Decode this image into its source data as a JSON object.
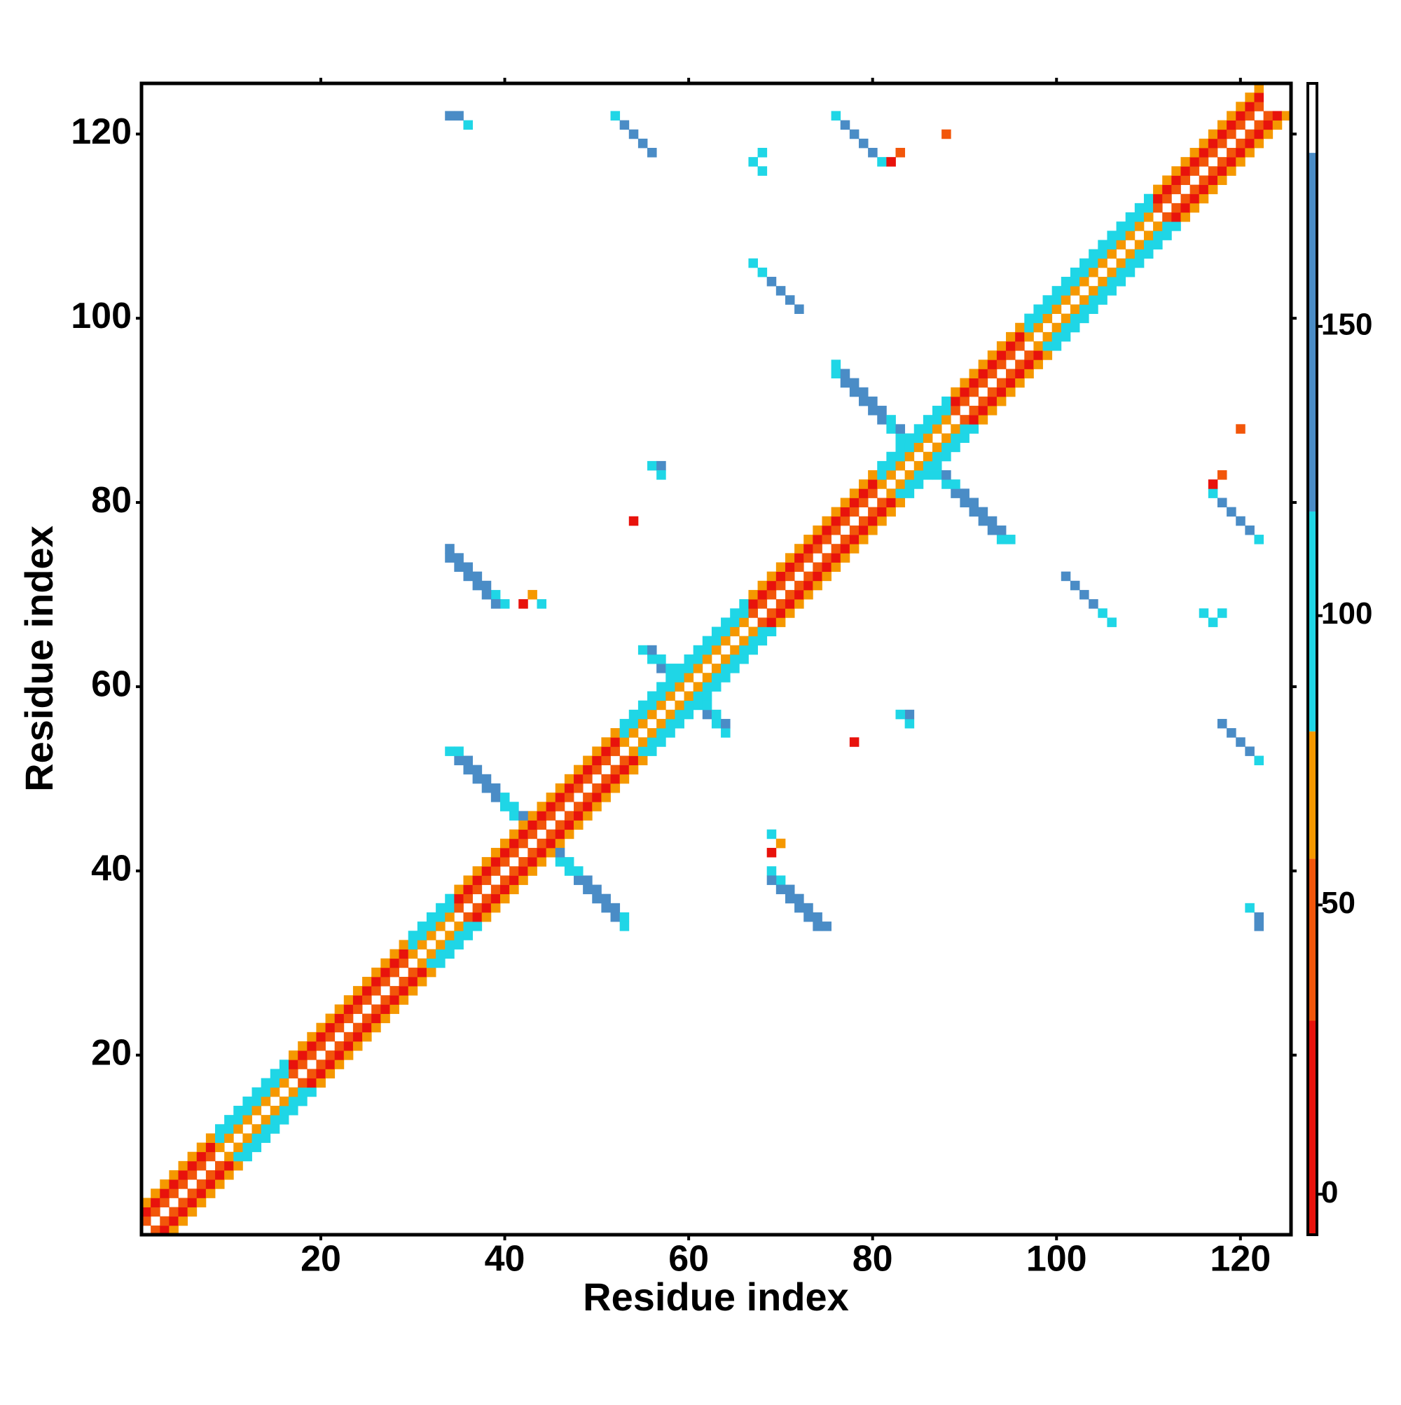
{
  "chart_data": {
    "type": "heatmap",
    "xlabel": "Residue index",
    "ylabel": "Residue index",
    "xlim": [
      0.5,
      125.5
    ],
    "ylim": [
      0.5,
      125.5
    ],
    "xticks": [
      20,
      40,
      60,
      80,
      100,
      120
    ],
    "yticks": [
      20,
      40,
      60,
      80,
      100,
      120
    ],
    "symmetric": true,
    "colorbar": {
      "lim": [
        -7,
        192
      ],
      "ticks": [
        0,
        50,
        100,
        150
      ],
      "bands": [
        {
          "from": -7,
          "to": 30,
          "color": "#e8120c"
        },
        {
          "from": 30,
          "to": 58,
          "color": "#f2560a"
        },
        {
          "from": 58,
          "to": 80,
          "color": "#f59800"
        },
        {
          "from": 80,
          "to": 118,
          "color": "#1fd6e6"
        },
        {
          "from": 118,
          "to": 180,
          "color": "#4a8cc6"
        },
        {
          "from": 180,
          "to": 192,
          "color": "#ffffff"
        }
      ]
    },
    "x": [
      1,
      1,
      1,
      2,
      2,
      2,
      3,
      3,
      3,
      4,
      4,
      4,
      5,
      5,
      5,
      6,
      6,
      6,
      7,
      7,
      7,
      8,
      8,
      8,
      9,
      9,
      9,
      10,
      10,
      10,
      11,
      11,
      11,
      12,
      12,
      12,
      13,
      13,
      13,
      14,
      14,
      14,
      15,
      15,
      15,
      16,
      16,
      16,
      17,
      17,
      17,
      18,
      18,
      18,
      19,
      19,
      19,
      20,
      20,
      20,
      21,
      21,
      21,
      22,
      22,
      22,
      23,
      23,
      23,
      24,
      24,
      24,
      25,
      25,
      25,
      26,
      26,
      26,
      27,
      27,
      27,
      28,
      28,
      28,
      29,
      29,
      29,
      30,
      30,
      30,
      31,
      31,
      31,
      32,
      32,
      32,
      33,
      33,
      33,
      34,
      34,
      34,
      35,
      35,
      35,
      36,
      36,
      36,
      37,
      37,
      37,
      38,
      38,
      38,
      39,
      39,
      39,
      40,
      40,
      40,
      41,
      41,
      41,
      42,
      42,
      42,
      43,
      43,
      43,
      44,
      44,
      44,
      45,
      45,
      45,
      46,
      46,
      46,
      47,
      47,
      47,
      48,
      48,
      48,
      49,
      49,
      49,
      50,
      50,
      50,
      51,
      51,
      51,
      52,
      52,
      52,
      53,
      53,
      53,
      54,
      54,
      54,
      55,
      55,
      55,
      56,
      56,
      56,
      57,
      57,
      57,
      58,
      58,
      58,
      59,
      59,
      59,
      60,
      60,
      60,
      61,
      61,
      61,
      62,
      62,
      62,
      63,
      63,
      63,
      64,
      64,
      64,
      65,
      65,
      65,
      66,
      66,
      66,
      67,
      67,
      67,
      68,
      68,
      68,
      69,
      69,
      69,
      70,
      70,
      70,
      71,
      71,
      71,
      72,
      72,
      72,
      73,
      73,
      73,
      74,
      74,
      74,
      75,
      75,
      75,
      76,
      76,
      76,
      77,
      77,
      77,
      78,
      78,
      78,
      79,
      79,
      79,
      80,
      80,
      80,
      81,
      81,
      81,
      82,
      82,
      82,
      83,
      83,
      83,
      84,
      84,
      84,
      85,
      85,
      85,
      86,
      86,
      86,
      87,
      87,
      87,
      88,
      88,
      88,
      89,
      89,
      89,
      90,
      90,
      90,
      91,
      91,
      91,
      92,
      92,
      92,
      93,
      93,
      93,
      94,
      94,
      94,
      95,
      95,
      95,
      96,
      96,
      96,
      97,
      97,
      97,
      98,
      98,
      98,
      99,
      99,
      99,
      100,
      100,
      100,
      101,
      101,
      101,
      102,
      102,
      102,
      103,
      103,
      103,
      104,
      104,
      104,
      105,
      105,
      105,
      106,
      106,
      106,
      107,
      107,
      107,
      108,
      108,
      108,
      109,
      109,
      109,
      110,
      110,
      110,
      111,
      111,
      111,
      112,
      112,
      112,
      113,
      113,
      113,
      114,
      114,
      114,
      115,
      115,
      115,
      116,
      116,
      116,
      117,
      117,
      117,
      118,
      118,
      118,
      119,
      119,
      119,
      120,
      120,
      120,
      121,
      121,
      121,
      122,
      122,
      122,
      34,
      35,
      36,
      37,
      38,
      39,
      40,
      41,
      35,
      36,
      37,
      38,
      39,
      40,
      41,
      42,
      76,
      77,
      78,
      79,
      80,
      81,
      82,
      83,
      76,
      77,
      78,
      79,
      80,
      81,
      82,
      83,
      55,
      56,
      57,
      56,
      57,
      58,
      34,
      35,
      36,
      37,
      38,
      39,
      40,
      34,
      35,
      36,
      37,
      38,
      39,
      42,
      43,
      44,
      67,
      68,
      69,
      70,
      71,
      72,
      76,
      77,
      78,
      79,
      80,
      81,
      82,
      83,
      52,
      53,
      54,
      55,
      56,
      34,
      35,
      36,
      67,
      68,
      68,
      56,
      57,
      57,
      88,
      54
    ],
    "y": [
      2,
      3,
      4,
      3,
      4,
      5,
      4,
      5,
      6,
      5,
      6,
      7,
      6,
      7,
      8,
      7,
      8,
      9,
      8,
      9,
      10,
      9,
      10,
      11,
      10,
      11,
      12,
      11,
      12,
      13,
      12,
      13,
      14,
      13,
      14,
      15,
      14,
      15,
      16,
      15,
      16,
      17,
      16,
      17,
      18,
      17,
      18,
      19,
      18,
      19,
      20,
      19,
      20,
      21,
      20,
      21,
      22,
      21,
      22,
      23,
      22,
      23,
      24,
      23,
      24,
      25,
      24,
      25,
      26,
      25,
      26,
      27,
      26,
      27,
      28,
      27,
      28,
      29,
      28,
      29,
      30,
      29,
      30,
      31,
      30,
      31,
      32,
      31,
      32,
      33,
      32,
      33,
      34,
      33,
      34,
      35,
      34,
      35,
      36,
      35,
      36,
      37,
      36,
      37,
      38,
      37,
      38,
      39,
      38,
      39,
      40,
      39,
      40,
      41,
      40,
      41,
      42,
      41,
      42,
      43,
      42,
      43,
      44,
      43,
      44,
      45,
      44,
      45,
      46,
      45,
      46,
      47,
      46,
      47,
      48,
      47,
      48,
      49,
      48,
      49,
      50,
      49,
      50,
      51,
      50,
      51,
      52,
      51,
      52,
      53,
      52,
      53,
      54,
      53,
      54,
      55,
      54,
      55,
      56,
      55,
      56,
      57,
      56,
      57,
      58,
      57,
      58,
      59,
      58,
      59,
      60,
      59,
      60,
      61,
      60,
      61,
      62,
      61,
      62,
      63,
      62,
      63,
      64,
      63,
      64,
      65,
      64,
      65,
      66,
      65,
      66,
      67,
      66,
      67,
      68,
      67,
      68,
      69,
      68,
      69,
      70,
      69,
      70,
      71,
      70,
      71,
      72,
      71,
      72,
      73,
      72,
      73,
      74,
      73,
      74,
      75,
      74,
      75,
      76,
      75,
      76,
      77,
      76,
      77,
      78,
      77,
      78,
      79,
      78,
      79,
      80,
      79,
      80,
      81,
      80,
      81,
      82,
      81,
      82,
      83,
      82,
      83,
      84,
      83,
      84,
      85,
      84,
      85,
      86,
      85,
      86,
      87,
      86,
      87,
      88,
      87,
      88,
      89,
      88,
      89,
      90,
      89,
      90,
      91,
      90,
      91,
      92,
      91,
      92,
      93,
      92,
      93,
      94,
      93,
      94,
      95,
      94,
      95,
      96,
      95,
      96,
      97,
      96,
      97,
      98,
      97,
      98,
      99,
      98,
      99,
      100,
      99,
      100,
      101,
      100,
      101,
      102,
      101,
      102,
      103,
      102,
      103,
      104,
      103,
      104,
      105,
      104,
      105,
      106,
      105,
      106,
      107,
      106,
      107,
      108,
      107,
      108,
      109,
      108,
      109,
      110,
      109,
      110,
      111,
      110,
      111,
      112,
      111,
      112,
      113,
      112,
      113,
      114,
      113,
      114,
      115,
      114,
      115,
      116,
      115,
      116,
      117,
      116,
      117,
      118,
      117,
      118,
      119,
      118,
      119,
      120,
      119,
      120,
      121,
      120,
      121,
      122,
      121,
      122,
      123,
      122,
      123,
      124,
      123,
      124,
      125,
      53,
      52,
      51,
      50,
      49,
      48,
      47,
      46,
      53,
      52,
      51,
      50,
      49,
      48,
      47,
      46,
      94,
      93,
      92,
      91,
      90,
      89,
      88,
      87,
      95,
      94,
      93,
      92,
      91,
      90,
      89,
      88,
      64,
      63,
      62,
      64,
      63,
      62,
      75,
      74,
      73,
      72,
      71,
      70,
      69,
      74,
      73,
      72,
      71,
      70,
      69,
      69,
      70,
      69,
      106,
      105,
      104,
      103,
      102,
      101,
      122,
      121,
      120,
      119,
      118,
      117,
      117,
      118,
      122,
      121,
      120,
      119,
      118,
      122,
      122,
      121,
      117,
      118,
      116,
      84,
      84,
      83,
      120,
      78
    ],
    "values": [
      45,
      15,
      65,
      45,
      15,
      65,
      45,
      15,
      65,
      45,
      15,
      65,
      45,
      15,
      65,
      45,
      15,
      65,
      45,
      15,
      65,
      45,
      15,
      65,
      70,
      100,
      110,
      70,
      100,
      110,
      70,
      100,
      110,
      70,
      100,
      110,
      70,
      100,
      110,
      70,
      100,
      110,
      70,
      100,
      110,
      70,
      100,
      110,
      45,
      15,
      65,
      45,
      15,
      65,
      45,
      15,
      65,
      45,
      15,
      65,
      45,
      15,
      65,
      45,
      15,
      65,
      45,
      15,
      65,
      45,
      15,
      65,
      45,
      15,
      65,
      45,
      15,
      65,
      45,
      15,
      65,
      45,
      15,
      65,
      45,
      15,
      65,
      70,
      100,
      110,
      70,
      100,
      110,
      70,
      100,
      110,
      70,
      100,
      110,
      70,
      100,
      110,
      45,
      15,
      65,
      45,
      15,
      65,
      45,
      15,
      65,
      45,
      15,
      65,
      45,
      15,
      65,
      45,
      15,
      65,
      45,
      15,
      65,
      45,
      15,
      65,
      45,
      15,
      65,
      45,
      15,
      65,
      45,
      15,
      65,
      45,
      15,
      65,
      45,
      15,
      65,
      45,
      15,
      65,
      45,
      15,
      65,
      45,
      15,
      65,
      45,
      15,
      65,
      45,
      15,
      65,
      70,
      100,
      110,
      70,
      100,
      110,
      70,
      100,
      110,
      70,
      100,
      110,
      70,
      100,
      110,
      70,
      100,
      110,
      70,
      100,
      110,
      70,
      100,
      110,
      70,
      100,
      110,
      70,
      100,
      110,
      70,
      100,
      110,
      70,
      100,
      110,
      70,
      100,
      110,
      70,
      100,
      110,
      45,
      15,
      65,
      45,
      15,
      65,
      45,
      15,
      65,
      45,
      15,
      65,
      45,
      15,
      65,
      45,
      15,
      65,
      45,
      15,
      65,
      45,
      15,
      65,
      45,
      15,
      65,
      45,
      15,
      65,
      45,
      15,
      65,
      45,
      15,
      65,
      45,
      15,
      65,
      45,
      15,
      65,
      70,
      100,
      110,
      70,
      100,
      110,
      70,
      100,
      110,
      70,
      100,
      110,
      70,
      100,
      110,
      70,
      100,
      110,
      70,
      100,
      110,
      70,
      100,
      110,
      45,
      15,
      65,
      45,
      15,
      65,
      45,
      15,
      65,
      45,
      15,
      65,
      45,
      15,
      65,
      45,
      15,
      65,
      45,
      15,
      65,
      45,
      15,
      65,
      70,
      100,
      110,
      70,
      100,
      110,
      70,
      100,
      110,
      70,
      100,
      110,
      70,
      100,
      110,
      70,
      100,
      110,
      70,
      100,
      110,
      70,
      100,
      110,
      70,
      100,
      110,
      70,
      100,
      110,
      70,
      100,
      110,
      70,
      100,
      110,
      70,
      100,
      110,
      70,
      100,
      110,
      45,
      15,
      65,
      45,
      15,
      65,
      45,
      15,
      65,
      45,
      15,
      65,
      45,
      15,
      65,
      45,
      15,
      65,
      45,
      15,
      65,
      45,
      15,
      65,
      45,
      15,
      65,
      45,
      15,
      65,
      45,
      15,
      65,
      45,
      15,
      65,
      100,
      150,
      150,
      150,
      150,
      150,
      100,
      100,
      100,
      150,
      150,
      150,
      150,
      100,
      100,
      150,
      100,
      150,
      150,
      150,
      150,
      150,
      100,
      100,
      100,
      150,
      150,
      150,
      150,
      150,
      100,
      150,
      100,
      100,
      150,
      150,
      100,
      100,
      150,
      150,
      150,
      150,
      150,
      100,
      100,
      150,
      150,
      150,
      150,
      150,
      150,
      20,
      60,
      100,
      100,
      100,
      150,
      150,
      150,
      150,
      100,
      150,
      150,
      150,
      150,
      100,
      20,
      45,
      100,
      150,
      150,
      150,
      150,
      150,
      150,
      100,
      100,
      100,
      100,
      100,
      150,
      100,
      45,
      15
    ]
  }
}
